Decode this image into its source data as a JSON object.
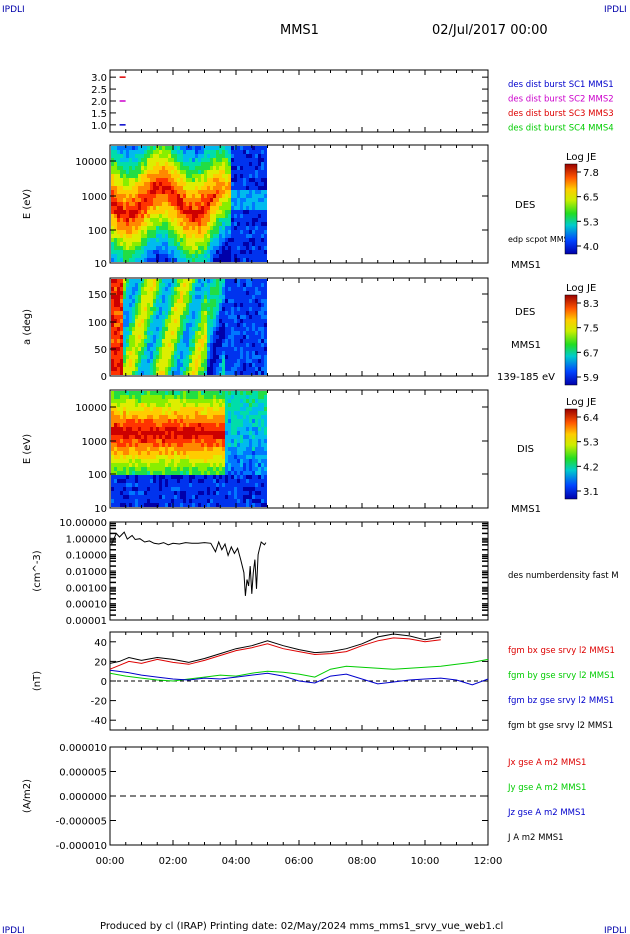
{
  "header": {
    "corner_left": "IPDLI",
    "corner_right": "IPDLI",
    "title": "MMS1",
    "date": "02/Jul/2017 00:00"
  },
  "footer": {
    "text": "Produced by cl (IRAP)   Printing date: 02/May/2024   mms_mms1_srvy_vue_web1.cl",
    "corner_left": "IPDLI",
    "corner_right": "IPDLI"
  },
  "colors": {
    "blue": "#0000cc",
    "magenta": "#cc00cc",
    "red": "#dd0000",
    "green": "#00cc00",
    "black": "#000000"
  },
  "chart_data": [
    {
      "id": "burst",
      "type": "scatter",
      "y_ticks": [
        "3.0",
        "2.5",
        "2.0",
        "1.5",
        "1.0"
      ],
      "ylim": [
        0.7,
        3.3
      ],
      "legend": [
        {
          "label": "des dist burst SC1 MMS1",
          "color": "#0000cc"
        },
        {
          "label": "des dist burst SC2 MMS2",
          "color": "#cc00cc"
        },
        {
          "label": "des dist burst SC3 MMS3",
          "color": "#dd0000"
        },
        {
          "label": "des dist burst SC4 MMS4",
          "color": "#00cc00"
        }
      ],
      "points": [
        {
          "x": 0.4,
          "y": 3.0,
          "color": "#dd0000"
        },
        {
          "x": 0.4,
          "y": 2.0,
          "color": "#cc00cc"
        },
        {
          "x": 0.4,
          "y": 1.0,
          "color": "#0000cc"
        }
      ]
    },
    {
      "id": "des_energy",
      "type": "heatmap",
      "ylabel": "E (eV)",
      "y_ticks": [
        "10000",
        "1000",
        "100",
        "10"
      ],
      "label_main": "DES",
      "label_overlay": "edp scpot MMS1",
      "label_sc": "MMS1",
      "colorbar": {
        "title": "Log JE",
        "ticks": [
          "7.8",
          "6.5",
          "5.3",
          "4.0"
        ]
      },
      "x_end_hours": 4.95
    },
    {
      "id": "des_pitch",
      "type": "heatmap",
      "ylabel": "a (deg)",
      "y_ticks": [
        "150",
        "100",
        "50",
        "0"
      ],
      "label_main": "DES",
      "label_sc": "MMS1",
      "label_energy": "139-185 eV",
      "colorbar": {
        "title": "Log JE",
        "ticks": [
          "8.3",
          "7.5",
          "6.7",
          "5.9"
        ]
      },
      "x_end_hours": 4.95
    },
    {
      "id": "dis_energy",
      "type": "heatmap",
      "ylabel": "E (eV)",
      "y_ticks": [
        "10000",
        "1000",
        "100",
        "10"
      ],
      "label_main": "DIS",
      "label_sc": "MMS1",
      "colorbar": {
        "title": "Log JE",
        "ticks": [
          "6.4",
          "5.3",
          "4.2",
          "3.1"
        ]
      },
      "x_end_hours": 4.95
    },
    {
      "id": "density",
      "type": "line",
      "ylabel": "(cm^-3)",
      "y_ticks": [
        "10.00000",
        "1.00000",
        "0.10000",
        "0.01000",
        "0.00100",
        "0.00010",
        "0.00001"
      ],
      "legend": [
        {
          "label": "des numberdensity fast M",
          "color": "#000000"
        }
      ],
      "x": [
        0.05,
        0.2,
        0.3,
        0.45,
        0.55,
        0.7,
        0.8,
        0.95,
        1.1,
        1.25,
        1.4,
        1.55,
        1.7,
        1.85,
        2.0,
        2.2,
        2.4,
        2.6,
        2.8,
        3.0,
        3.2,
        3.35,
        3.45,
        3.55,
        3.65,
        3.75,
        3.85,
        3.95,
        4.05,
        4.15,
        4.25,
        4.3,
        4.35,
        4.4,
        4.45,
        4.5,
        4.55,
        4.6,
        4.65,
        4.7,
        4.75,
        4.8,
        4.9,
        4.95
      ],
      "y": [
        0.45,
        2.0,
        1.2,
        2.4,
        0.9,
        1.5,
        0.85,
        0.95,
        0.6,
        0.7,
        0.5,
        0.45,
        0.55,
        0.4,
        0.5,
        0.45,
        0.55,
        0.5,
        0.5,
        0.55,
        0.5,
        0.15,
        0.6,
        0.2,
        0.45,
        0.09,
        0.3,
        0.12,
        0.25,
        0.05,
        0.008,
        0.0003,
        0.003,
        0.0012,
        0.02,
        0.0004,
        0.008,
        0.05,
        0.0008,
        0.1,
        0.25,
        0.6,
        0.4,
        0.55
      ]
    },
    {
      "id": "magnetic",
      "type": "line",
      "ylabel": "(nT)",
      "y_ticks": [
        "40",
        "20",
        "0",
        "-20",
        "-40"
      ],
      "ylim": [
        -50,
        50
      ],
      "legend": [
        {
          "label": "fgm bx gse srvy l2 MMS1",
          "color": "#dd0000"
        },
        {
          "label": "fgm by gse srvy l2 MMS1",
          "color": "#00cc00"
        },
        {
          "label": "fgm bz gse srvy l2 MMS1",
          "color": "#0000cc"
        },
        {
          "label": "fgm bt gse srvy l2 MMS1",
          "color": "#000000"
        }
      ],
      "series": [
        {
          "name": "fgm bx gse srvy l2 MMS1",
          "color": "#dd0000",
          "x": [
            0,
            0.3,
            0.6,
            1.0,
            1.5,
            2.0,
            2.5,
            3.0,
            3.5,
            4.0,
            4.5,
            5.0,
            5.5,
            6.0,
            6.5,
            7.0,
            7.5,
            8.0,
            8.5,
            9.0,
            9.5,
            10.0,
            10.5
          ],
          "y": [
            12,
            16,
            20,
            18,
            22,
            19,
            17,
            21,
            26,
            31,
            34,
            38,
            33,
            30,
            27,
            28,
            30,
            36,
            41,
            44,
            43,
            40,
            42
          ]
        },
        {
          "name": "fgm by gse srvy l2 MMS1",
          "color": "#00cc00",
          "x": [
            0,
            0.5,
            1.0,
            1.5,
            2.0,
            2.5,
            3.0,
            3.5,
            4.0,
            4.5,
            5.0,
            5.5,
            6.0,
            6.5,
            7.0,
            7.5,
            8.0,
            8.5,
            9.0,
            9.5,
            10.0,
            10.5,
            11.0,
            11.5,
            12.0
          ],
          "y": [
            8,
            5,
            3,
            1,
            0,
            2,
            4,
            6,
            5,
            8,
            10,
            9,
            7,
            4,
            12,
            15,
            14,
            13,
            12,
            13,
            14,
            15,
            17,
            19,
            22
          ]
        },
        {
          "name": "fgm bz gse srvy l2 MMS1",
          "color": "#0000cc",
          "x": [
            0,
            0.5,
            1.0,
            1.5,
            2.0,
            2.5,
            3.0,
            3.5,
            4.0,
            4.5,
            5.0,
            5.5,
            6.0,
            6.5,
            7.0,
            7.5,
            8.0,
            8.5,
            9.0,
            9.5,
            10.0,
            10.5,
            11.0,
            11.5,
            12.0
          ],
          "y": [
            11,
            9,
            6,
            4,
            2,
            1,
            3,
            2,
            4,
            6,
            8,
            5,
            0,
            -2,
            5,
            7,
            2,
            -3,
            -1,
            1,
            2,
            3,
            1,
            -4,
            2
          ]
        },
        {
          "name": "fgm bt gse srvy l2 MMS1",
          "color": "#000000",
          "x": [
            0,
            0.3,
            0.6,
            1.0,
            1.5,
            2.0,
            2.5,
            3.0,
            3.5,
            4.0,
            4.5,
            5.0,
            5.5,
            6.0,
            6.5,
            7.0,
            7.5,
            8.0,
            8.5,
            9.0,
            9.5,
            10.0,
            10.5
          ],
          "y": [
            18,
            20,
            24,
            21,
            24,
            22,
            19,
            23,
            28,
            33,
            36,
            41,
            36,
            32,
            29,
            30,
            33,
            38,
            45,
            48,
            46,
            42,
            45
          ]
        }
      ]
    },
    {
      "id": "current",
      "type": "line",
      "ylabel": "(A/m2)",
      "y_ticks": [
        "0.000010",
        "0.000005",
        "0.000000",
        "-0.000005",
        "-0.000010"
      ],
      "ylim": [
        -1e-05,
        1e-05
      ],
      "legend": [
        {
          "label": "Jx gse A m2 MMS1",
          "color": "#dd0000"
        },
        {
          "label": "Jy gse A m2 MMS1",
          "color": "#00cc00"
        },
        {
          "label": "Jz gse A m2 MMS1",
          "color": "#0000cc"
        },
        {
          "label": "J A m2 MMS1",
          "color": "#000000"
        }
      ]
    }
  ],
  "x_axis": {
    "ticks": [
      "00:00",
      "02:00",
      "04:00",
      "06:00",
      "08:00",
      "10:00",
      "12:00"
    ],
    "xlim": [
      0,
      12
    ]
  }
}
